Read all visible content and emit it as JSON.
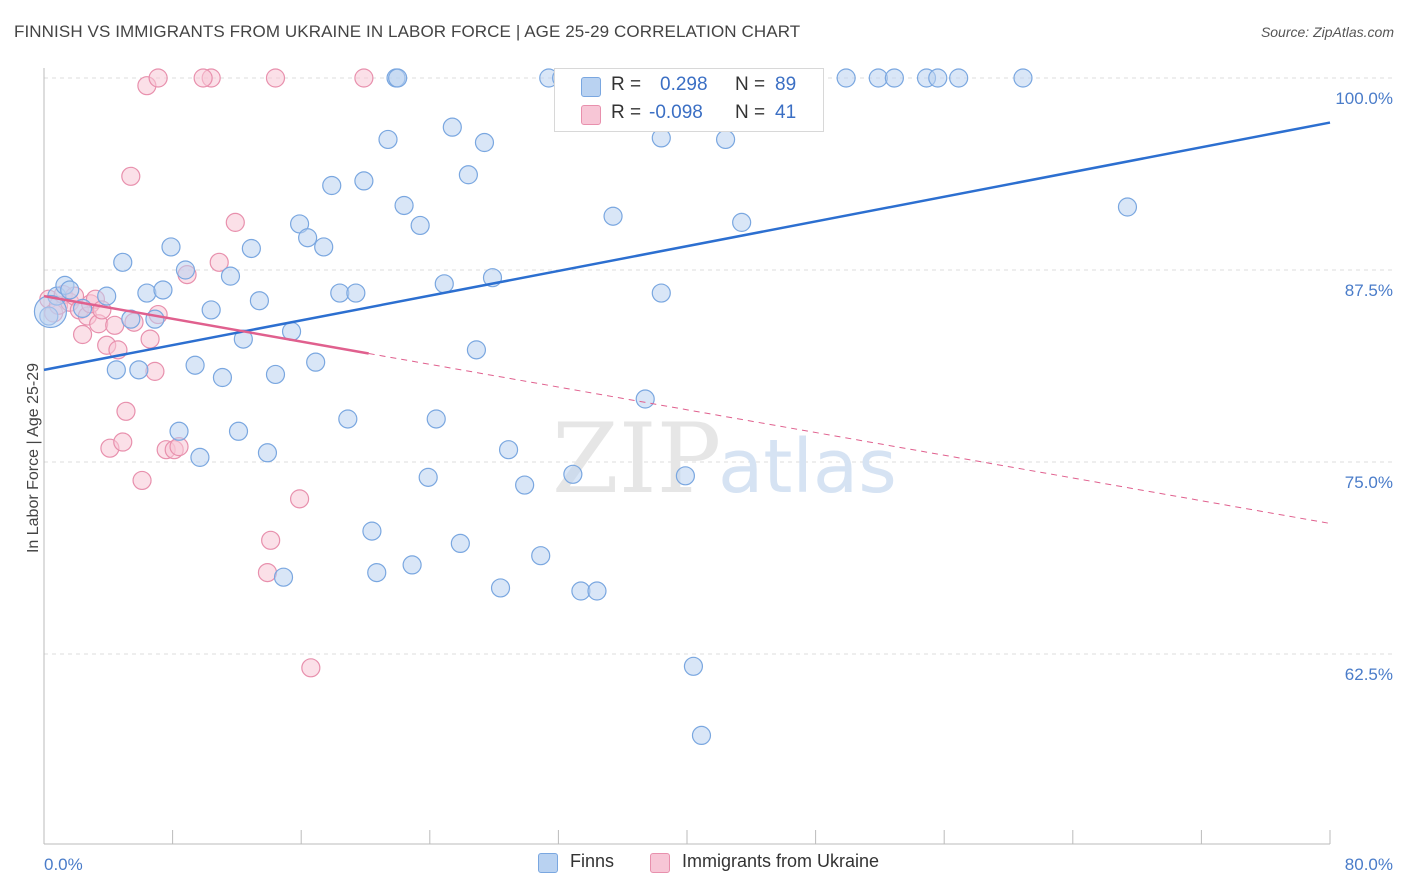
{
  "title": "FINNISH VS IMMIGRANTS FROM UKRAINE IN LABOR FORCE | AGE 25-29 CORRELATION CHART",
  "source": "Source: ZipAtlas.com",
  "watermark": {
    "zip": "ZIP",
    "atlas": "atlas"
  },
  "legend": {
    "finns": {
      "r_label": "R =",
      "r_value": "0.298",
      "n_label": "N =",
      "n_value": "89"
    },
    "ukraine": {
      "r_label": "R =",
      "r_value": "-0.098",
      "n_label": "N =",
      "n_value": "41"
    }
  },
  "bottom_legend": {
    "finns": "Finns",
    "ukraine": "Immigrants from Ukraine"
  },
  "colors": {
    "finns_fill": "#b9d2f1",
    "finns_stroke": "#7aa7e0",
    "finns_line": "#2c6fd0",
    "ukraine_fill": "#f7c6d6",
    "ukraine_stroke": "#e890ad",
    "ukraine_line": "#e0608e",
    "grid": "#dddddd",
    "tick_text": "#4a7cc9"
  },
  "chart_data": {
    "type": "scatter",
    "title": "FINNISH VS IMMIGRANTS FROM UKRAINE IN LABOR FORCE | AGE 25-29 CORRELATION CHART",
    "xlabel": "",
    "ylabel": "In Labor Force | Age 25-29",
    "xlim": [
      0,
      80
    ],
    "ylim": [
      50.0,
      101.0
    ],
    "x_tick_labels": [
      "0.0%",
      "80.0%"
    ],
    "y_ticks": [
      62.5,
      75.0,
      87.5,
      100.0
    ],
    "y_tick_labels": [
      "62.5%",
      "75.0%",
      "87.5%",
      "100.0%"
    ],
    "series": [
      {
        "name": "Finns",
        "r": 0.298,
        "n": 89,
        "trend": {
          "x": [
            0,
            80
          ],
          "y": [
            81.0,
            97.1
          ],
          "dashed_from_x": null
        },
        "points": [
          [
            0.3,
            84.5
          ],
          [
            0.8,
            85.8
          ],
          [
            1.3,
            86.5
          ],
          [
            1.6,
            86.2
          ],
          [
            2.4,
            85.0
          ],
          [
            3.9,
            85.8
          ],
          [
            4.5,
            81.0
          ],
          [
            4.9,
            88.0
          ],
          [
            5.4,
            84.3
          ],
          [
            5.9,
            81.0
          ],
          [
            6.4,
            86.0
          ],
          [
            6.9,
            84.3
          ],
          [
            7.4,
            86.2
          ],
          [
            7.9,
            89.0
          ],
          [
            8.4,
            77.0
          ],
          [
            8.8,
            87.5
          ],
          [
            9.4,
            81.3
          ],
          [
            9.7,
            75.3
          ],
          [
            10.4,
            84.9
          ],
          [
            11.1,
            80.5
          ],
          [
            11.6,
            87.1
          ],
          [
            12.1,
            77.0
          ],
          [
            12.4,
            83.0
          ],
          [
            12.9,
            88.9
          ],
          [
            13.4,
            85.5
          ],
          [
            13.9,
            75.6
          ],
          [
            14.4,
            80.7
          ],
          [
            14.9,
            67.5
          ],
          [
            15.4,
            83.5
          ],
          [
            15.9,
            90.5
          ],
          [
            16.4,
            89.6
          ],
          [
            16.9,
            81.5
          ],
          [
            17.4,
            89.0
          ],
          [
            17.9,
            93.0
          ],
          [
            18.4,
            86.0
          ],
          [
            18.9,
            77.8
          ],
          [
            19.4,
            86.0
          ],
          [
            19.9,
            93.3
          ],
          [
            20.4,
            70.5
          ],
          [
            20.7,
            67.8
          ],
          [
            21.4,
            96.0
          ],
          [
            21.9,
            100.0
          ],
          [
            22.4,
            91.7
          ],
          [
            22.9,
            68.3
          ],
          [
            23.4,
            90.4
          ],
          [
            23.9,
            74.0
          ],
          [
            24.4,
            77.8
          ],
          [
            24.9,
            86.6
          ],
          [
            25.4,
            96.8
          ],
          [
            25.9,
            69.7
          ],
          [
            26.4,
            93.7
          ],
          [
            26.9,
            82.3
          ],
          [
            27.4,
            95.8
          ],
          [
            27.9,
            87.0
          ],
          [
            28.4,
            66.8
          ],
          [
            28.9,
            75.8
          ],
          [
            29.9,
            73.5
          ],
          [
            30.9,
            68.9
          ],
          [
            31.4,
            100.0
          ],
          [
            32.4,
            100.0
          ],
          [
            32.9,
            74.2
          ],
          [
            33.4,
            66.6
          ],
          [
            34.4,
            66.6
          ],
          [
            35.4,
            91.0
          ],
          [
            36.4,
            100.0
          ],
          [
            37.4,
            79.1
          ],
          [
            38.4,
            86.0
          ],
          [
            38.4,
            96.1
          ],
          [
            39.4,
            100.0
          ],
          [
            39.9,
            74.1
          ],
          [
            40.4,
            61.7
          ],
          [
            40.9,
            57.2
          ],
          [
            41.4,
            100.0
          ],
          [
            42.4,
            100.0
          ],
          [
            42.4,
            96.0
          ],
          [
            43.4,
            100.0
          ],
          [
            43.4,
            90.6
          ],
          [
            44.4,
            100.0
          ],
          [
            49.9,
            100.0
          ],
          [
            51.9,
            100.0
          ],
          [
            52.9,
            100.0
          ],
          [
            54.9,
            100.0
          ],
          [
            56.9,
            100.0
          ],
          [
            60.9,
            100.0
          ],
          [
            67.4,
            91.6
          ],
          [
            35.9,
            100.0
          ],
          [
            32.2,
            100.0
          ],
          [
            55.6,
            100.0
          ],
          [
            22.0,
            100.0
          ]
        ]
      },
      {
        "name": "Immigrants from Ukraine",
        "r": -0.098,
        "n": 41,
        "trend": {
          "x": [
            0,
            80
          ],
          "y": [
            85.8,
            71.0
          ],
          "dashed_from_x": 20.2
        },
        "points": [
          [
            0.3,
            85.6
          ],
          [
            0.6,
            84.7
          ],
          [
            0.9,
            85.2
          ],
          [
            1.2,
            85.9
          ],
          [
            1.6,
            85.4
          ],
          [
            1.9,
            85.8
          ],
          [
            2.2,
            84.9
          ],
          [
            2.4,
            83.3
          ],
          [
            2.7,
            84.5
          ],
          [
            2.9,
            85.3
          ],
          [
            3.2,
            85.6
          ],
          [
            3.4,
            84.0
          ],
          [
            3.6,
            84.9
          ],
          [
            3.9,
            82.6
          ],
          [
            4.1,
            75.9
          ],
          [
            4.4,
            83.9
          ],
          [
            4.6,
            82.3
          ],
          [
            4.9,
            76.3
          ],
          [
            5.1,
            78.3
          ],
          [
            5.4,
            93.6
          ],
          [
            6.1,
            73.8
          ],
          [
            6.4,
            99.5
          ],
          [
            6.6,
            83.0
          ],
          [
            6.9,
            80.9
          ],
          [
            7.1,
            84.6
          ],
          [
            7.6,
            75.8
          ],
          [
            8.1,
            75.8
          ],
          [
            8.4,
            76.0
          ],
          [
            8.9,
            87.2
          ],
          [
            10.4,
            100.0
          ],
          [
            10.9,
            88.0
          ],
          [
            11.9,
            90.6
          ],
          [
            13.9,
            67.8
          ],
          [
            14.1,
            69.9
          ],
          [
            14.4,
            100.0
          ],
          [
            15.9,
            72.6
          ],
          [
            16.6,
            61.6
          ],
          [
            19.9,
            100.0
          ],
          [
            9.9,
            100.0
          ],
          [
            7.1,
            100.0
          ],
          [
            5.6,
            84.1
          ]
        ]
      }
    ]
  }
}
